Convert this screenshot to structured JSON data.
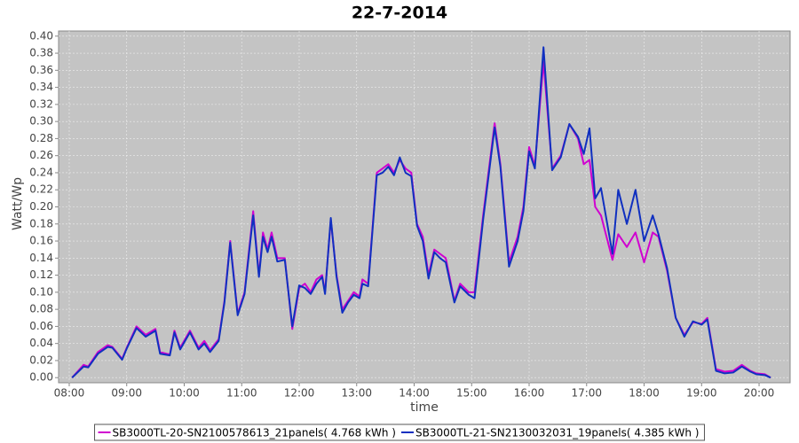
{
  "chart_data": {
    "type": "line",
    "title": "22-7-2014",
    "x_label": "time",
    "y_label": "Watt/Wp",
    "x": [
      8.05,
      8.25,
      8.33,
      8.5,
      8.67,
      8.75,
      8.92,
      9.0,
      9.17,
      9.33,
      9.5,
      9.58,
      9.75,
      9.83,
      9.93,
      10.1,
      10.25,
      10.35,
      10.45,
      10.6,
      10.7,
      10.8,
      10.93,
      11.05,
      11.2,
      11.3,
      11.37,
      11.45,
      11.52,
      11.62,
      11.75,
      11.88,
      12.0,
      12.1,
      12.2,
      12.3,
      12.4,
      12.45,
      12.55,
      12.65,
      12.75,
      12.85,
      12.95,
      13.05,
      13.1,
      13.2,
      13.35,
      13.45,
      13.55,
      13.65,
      13.75,
      13.85,
      13.95,
      14.05,
      14.15,
      14.25,
      14.35,
      14.45,
      14.55,
      14.7,
      14.8,
      14.95,
      15.05,
      15.2,
      15.4,
      15.5,
      15.65,
      15.8,
      15.9,
      16.0,
      16.1,
      16.25,
      16.4,
      16.55,
      16.7,
      16.85,
      16.95,
      17.05,
      17.15,
      17.25,
      17.45,
      17.55,
      17.7,
      17.85,
      18.0,
      18.15,
      18.25,
      18.4,
      18.55,
      18.7,
      18.85,
      19.0,
      19.1,
      19.25,
      19.4,
      19.55,
      19.7,
      19.85,
      19.95,
      20.1,
      20.2
    ],
    "series": [
      {
        "name": "SB3000TL-20-SN2100578613_21panels( 4.768 kWh )",
        "color": "#d000d0",
        "values": [
          0.0,
          0.015,
          0.013,
          0.03,
          0.038,
          0.036,
          0.022,
          0.035,
          0.06,
          0.05,
          0.057,
          0.03,
          0.027,
          0.055,
          0.035,
          0.055,
          0.035,
          0.043,
          0.032,
          0.045,
          0.09,
          0.16,
          0.075,
          0.1,
          0.195,
          0.12,
          0.17,
          0.15,
          0.17,
          0.14,
          0.14,
          0.057,
          0.105,
          0.11,
          0.1,
          0.115,
          0.12,
          0.1,
          0.185,
          0.12,
          0.08,
          0.09,
          0.1,
          0.095,
          0.115,
          0.11,
          0.24,
          0.245,
          0.25,
          0.24,
          0.255,
          0.245,
          0.24,
          0.18,
          0.165,
          0.12,
          0.15,
          0.145,
          0.14,
          0.09,
          0.11,
          0.1,
          0.1,
          0.19,
          0.298,
          0.25,
          0.135,
          0.165,
          0.2,
          0.27,
          0.248,
          0.37,
          0.245,
          0.26,
          0.297,
          0.28,
          0.25,
          0.255,
          0.2,
          0.19,
          0.138,
          0.168,
          0.153,
          0.17,
          0.135,
          0.17,
          0.165,
          0.125,
          0.07,
          0.05,
          0.065,
          0.063,
          0.07,
          0.01,
          0.007,
          0.008,
          0.015,
          0.008,
          0.005,
          0.004,
          0.0
        ]
      },
      {
        "name": "SB3000TL-21-SN2130032031_19panels( 4.385 kWh )",
        "color": "#1030c0",
        "values": [
          0.0,
          0.013,
          0.012,
          0.028,
          0.036,
          0.035,
          0.021,
          0.034,
          0.058,
          0.048,
          0.055,
          0.028,
          0.026,
          0.053,
          0.033,
          0.053,
          0.033,
          0.04,
          0.03,
          0.043,
          0.088,
          0.158,
          0.073,
          0.098,
          0.19,
          0.118,
          0.165,
          0.147,
          0.165,
          0.136,
          0.138,
          0.06,
          0.108,
          0.105,
          0.098,
          0.11,
          0.118,
          0.098,
          0.187,
          0.118,
          0.076,
          0.088,
          0.097,
          0.093,
          0.11,
          0.107,
          0.237,
          0.24,
          0.247,
          0.237,
          0.258,
          0.24,
          0.236,
          0.178,
          0.16,
          0.116,
          0.147,
          0.14,
          0.135,
          0.088,
          0.107,
          0.097,
          0.093,
          0.185,
          0.293,
          0.247,
          0.13,
          0.16,
          0.195,
          0.265,
          0.245,
          0.387,
          0.243,
          0.258,
          0.297,
          0.282,
          0.262,
          0.292,
          0.21,
          0.222,
          0.145,
          0.22,
          0.18,
          0.22,
          0.16,
          0.19,
          0.168,
          0.128,
          0.07,
          0.048,
          0.066,
          0.062,
          0.068,
          0.008,
          0.005,
          0.006,
          0.013,
          0.007,
          0.004,
          0.003,
          0.0
        ]
      }
    ],
    "xlim": [
      7.815,
      20.54
    ],
    "xticks": [
      {
        "value": 8,
        "label": "08:00"
      },
      {
        "value": 9,
        "label": "09:00"
      },
      {
        "value": 10,
        "label": "10:00"
      },
      {
        "value": 11,
        "label": "11:00"
      },
      {
        "value": 12,
        "label": "12:00"
      },
      {
        "value": 13,
        "label": "13:00"
      },
      {
        "value": 14,
        "label": "14:00"
      },
      {
        "value": 15,
        "label": "15:00"
      },
      {
        "value": 16,
        "label": "16:00"
      },
      {
        "value": 17,
        "label": "17:00"
      },
      {
        "value": 18,
        "label": "18:00"
      },
      {
        "value": 19,
        "label": "19:00"
      },
      {
        "value": 20,
        "label": "20:00"
      }
    ],
    "ylim": [
      -0.006,
      0.406
    ],
    "yticks": [
      {
        "value": 0,
        "label": "0.00"
      },
      {
        "value": 0.02,
        "label": "0.02"
      },
      {
        "value": 0.04,
        "label": "0.04"
      },
      {
        "value": 0.06,
        "label": "0.06"
      },
      {
        "value": 0.08,
        "label": "0.08"
      },
      {
        "value": 0.1,
        "label": "0.10"
      },
      {
        "value": 0.12,
        "label": "0.12"
      },
      {
        "value": 0.14,
        "label": "0.14"
      },
      {
        "value": 0.16,
        "label": "0.16"
      },
      {
        "value": 0.18,
        "label": "0.18"
      },
      {
        "value": 0.2,
        "label": "0.20"
      },
      {
        "value": 0.22,
        "label": "0.22"
      },
      {
        "value": 0.24,
        "label": "0.24"
      },
      {
        "value": 0.26,
        "label": "0.26"
      },
      {
        "value": 0.28,
        "label": "0.28"
      },
      {
        "value": 0.3,
        "label": "0.30"
      },
      {
        "value": 0.32,
        "label": "0.32"
      },
      {
        "value": 0.34,
        "label": "0.34"
      },
      {
        "value": 0.36,
        "label": "0.36"
      },
      {
        "value": 0.38,
        "label": "0.38"
      },
      {
        "value": 0.4,
        "label": "0.40"
      }
    ],
    "grid": true,
    "legend": "bottom"
  }
}
